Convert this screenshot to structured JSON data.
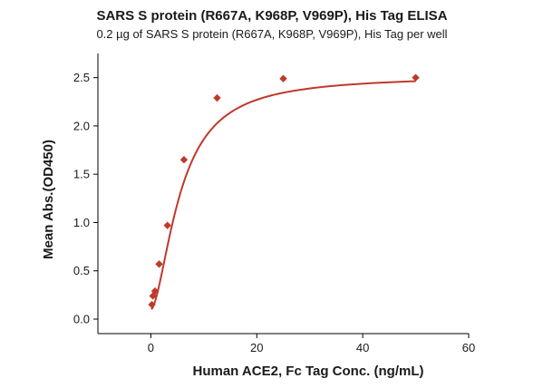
{
  "chart_data": {
    "type": "scatter",
    "title": "SARS S protein (R667A, K968P, V969P), His Tag ELISA",
    "subtitle": "0.2 µg of SARS S protein (R667A, K968P, V969P), His Tag per well",
    "xlabel": "Human ACE2, Fc Tag Conc. (ng/mL)",
    "ylabel": "Mean Abs.(OD450)",
    "xlim": [
      -10,
      60
    ],
    "ylim": [
      -0.15,
      2.75
    ],
    "xticks": [
      0,
      20,
      40,
      60
    ],
    "yticks": [
      0.0,
      0.5,
      1.0,
      1.5,
      2.0,
      2.5
    ],
    "xtick_labels": [
      "0",
      "20",
      "40",
      "60"
    ],
    "ytick_labels": [
      "0.0",
      "0.5",
      "1.0",
      "1.5",
      "2.0",
      "2.5"
    ],
    "grid": false,
    "marker": "diamond",
    "color": "#c0392b",
    "x": [
      0.195,
      0.39,
      0.78,
      1.56,
      3.125,
      6.25,
      12.5,
      25,
      50
    ],
    "y": [
      0.15,
      0.24,
      0.29,
      0.57,
      0.97,
      1.65,
      2.29,
      2.49,
      2.5
    ],
    "fit": {
      "type": "four-parameter-logistic",
      "bottom": 0.1,
      "top": 2.52,
      "ec50": 5.6,
      "hill": 1.7,
      "x_range": [
        0.1,
        50
      ]
    }
  }
}
